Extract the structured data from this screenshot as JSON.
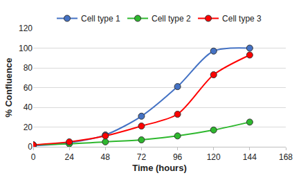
{
  "chart_data": {
    "type": "line",
    "x_label": "Time (hours)",
    "y_label": "% Confluence",
    "x": [
      0,
      24,
      48,
      72,
      96,
      120,
      144
    ],
    "series": [
      {
        "name": "Cell type 1",
        "color": "#4472c4",
        "values": [
          1,
          4,
          12,
          31,
          61,
          97,
          100
        ]
      },
      {
        "name": "Cell type 2",
        "color": "#2eb82e",
        "values": [
          2,
          3,
          5,
          7,
          11,
          17,
          25
        ]
      },
      {
        "name": "Cell type 3",
        "color": "#ff0000",
        "values": [
          2,
          5,
          11,
          21,
          33,
          73,
          93
        ]
      }
    ],
    "xlim": [
      0,
      168
    ],
    "xticks": [
      0,
      24,
      48,
      72,
      96,
      120,
      144,
      168
    ],
    "ylim": [
      0,
      120
    ],
    "yticks": [
      0,
      20,
      40,
      60,
      80,
      100,
      120
    ],
    "grid": true,
    "legend": "top",
    "marker": "circle",
    "line_style": "smooth"
  }
}
